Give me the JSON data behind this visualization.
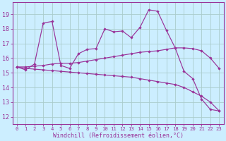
{
  "bg_color": "#cceeff",
  "grid_color": "#aacccc",
  "line_color": "#993399",
  "xlabel": "Windchill (Refroidissement éolien,°C)",
  "xlim": [
    -0.5,
    23.5
  ],
  "ylim": [
    11.5,
    19.8
  ],
  "x_ticks": [
    0,
    1,
    2,
    3,
    4,
    5,
    6,
    7,
    8,
    9,
    10,
    11,
    12,
    13,
    14,
    15,
    16,
    17,
    18,
    19,
    20,
    21,
    22,
    23
  ],
  "yticks": [
    12,
    13,
    14,
    15,
    16,
    17,
    18,
    19
  ],
  "series1": [
    15.4,
    15.2,
    15.6,
    18.4,
    18.5,
    15.5,
    15.3,
    16.3,
    16.6,
    16.65,
    18.0,
    17.8,
    17.85,
    17.4,
    18.1,
    19.3,
    19.2,
    17.9,
    16.7,
    15.1,
    14.6,
    13.2,
    12.5,
    12.4
  ],
  "series2": [
    15.4,
    15.3,
    15.25,
    15.2,
    15.15,
    15.1,
    15.05,
    15.0,
    14.95,
    14.9,
    14.85,
    14.8,
    14.75,
    14.7,
    14.6,
    14.5,
    14.4,
    14.3,
    14.2,
    14.0,
    13.7,
    13.4,
    13.0,
    12.4
  ],
  "series3": [
    15.4,
    15.4,
    15.45,
    15.5,
    15.6,
    15.65,
    15.65,
    15.7,
    15.8,
    15.9,
    16.0,
    16.1,
    16.2,
    16.3,
    16.4,
    16.45,
    16.5,
    16.6,
    16.7,
    16.7,
    16.65,
    16.5,
    16.0,
    15.3
  ]
}
